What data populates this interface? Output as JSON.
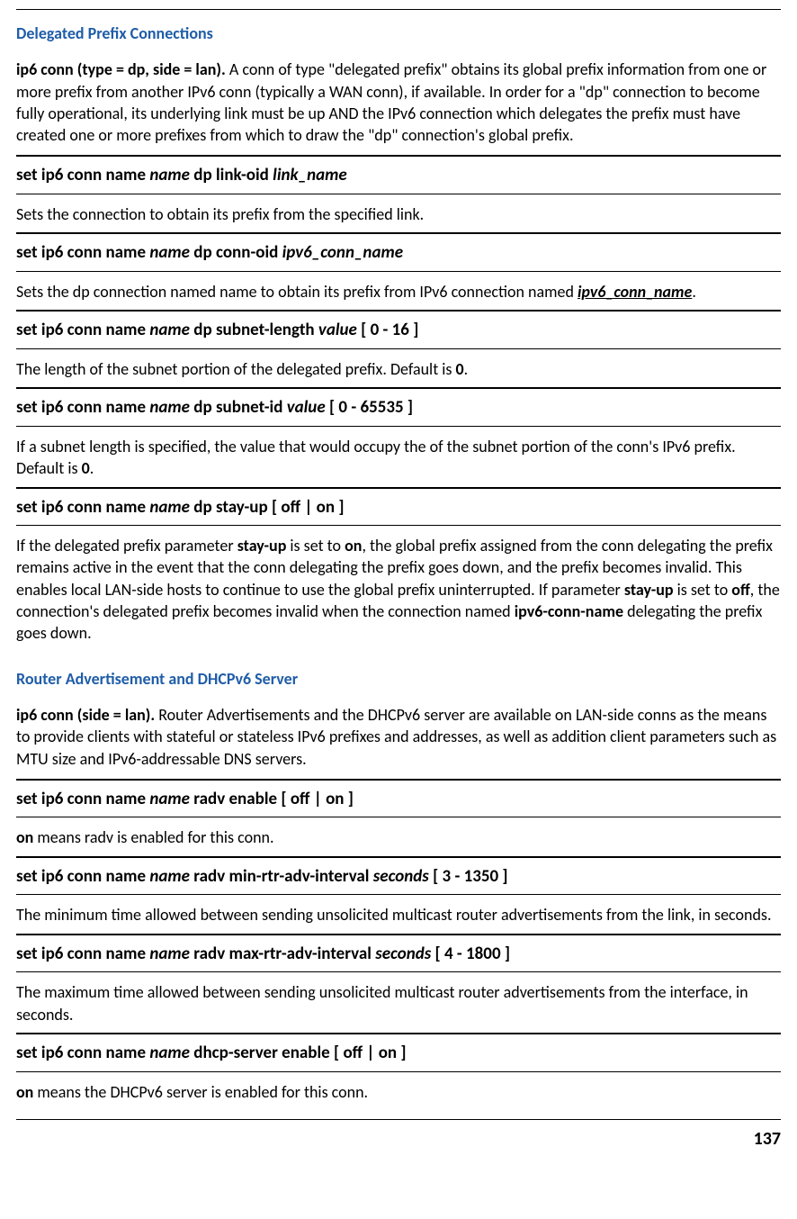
{
  "page_number": "137",
  "sections": [
    {
      "title": "Delegated Prefix Connections",
      "intro_lead": "ip6 conn (type = dp, side = lan).",
      "intro_body": " A conn of type \"delegated prefix\" obtains its global prefix information from one or more prefix from another IPv6 conn (typically a WAN conn), if available. In order for a \"dp\" connection to become fully operational, its underlying link must be up AND the IPv6 connection which delegates the prefix must have created one or more prefixes from which to draw the \"dp\" connection's global prefix.",
      "commands": [
        {
          "parts": [
            {
              "t": "set ip6 conn name ",
              "s": "b"
            },
            {
              "t": "name",
              "s": "i"
            },
            {
              "t": " dp link-oid ",
              "s": "b"
            },
            {
              "t": "link_name",
              "s": "i"
            }
          ],
          "desc": [
            {
              "t": "Sets the connection to obtain its prefix from the specified link.",
              "s": "n"
            }
          ]
        },
        {
          "parts": [
            {
              "t": "set ip6 conn name ",
              "s": "b"
            },
            {
              "t": "name",
              "s": "i"
            },
            {
              "t": " dp conn-oid ",
              "s": "b"
            },
            {
              "t": "ipv6_conn_name",
              "s": "i"
            }
          ],
          "desc": [
            {
              "t": "Sets the dp connection named name to obtain its prefix from IPv6 connection named ",
              "s": "n"
            },
            {
              "t": "ipv6_conn_name",
              "s": "biu"
            },
            {
              "t": ".",
              "s": "n"
            }
          ]
        },
        {
          "parts": [
            {
              "t": "set ip6 conn name ",
              "s": "b"
            },
            {
              "t": "name",
              "s": "i"
            },
            {
              "t": " dp subnet-length ",
              "s": "b"
            },
            {
              "t": "value",
              "s": "i"
            },
            {
              "t": " [ 0 - 16 ]",
              "s": "b"
            }
          ],
          "desc": [
            {
              "t": "The length of the subnet portion of the delegated prefix. Default is ",
              "s": "n"
            },
            {
              "t": "0",
              "s": "b"
            },
            {
              "t": ".",
              "s": "n"
            }
          ]
        },
        {
          "parts": [
            {
              "t": "set ip6 conn name ",
              "s": "b"
            },
            {
              "t": "name",
              "s": "i"
            },
            {
              "t": " dp subnet-id ",
              "s": "b"
            },
            {
              "t": "value",
              "s": "i"
            },
            {
              "t": " [ 0 - 65535 ]",
              "s": "b"
            }
          ],
          "desc": [
            {
              "t": "If a subnet length is specified, the value that would occupy the of the subnet portion of the conn's IPv6 prefix. Default is ",
              "s": "n"
            },
            {
              "t": "0",
              "s": "b"
            },
            {
              "t": ".",
              "s": "n"
            }
          ]
        },
        {
          "parts": [
            {
              "t": "set ip6 conn name ",
              "s": "b"
            },
            {
              "t": "name",
              "s": "i"
            },
            {
              "t": " dp stay-up [ off | on ]",
              "s": "b"
            }
          ],
          "desc": [
            {
              "t": "If the delegated prefix parameter ",
              "s": "n"
            },
            {
              "t": "stay-up",
              "s": "b"
            },
            {
              "t": " is set to ",
              "s": "n"
            },
            {
              "t": "on",
              "s": "b"
            },
            {
              "t": ", the global prefix assigned from the conn delegating the prefix remains active in the event that the conn delegating the prefix goes down, and the prefix becomes invalid. This enables local LAN-side hosts to continue to use the global prefix uninterrupted. If parameter ",
              "s": "n"
            },
            {
              "t": "stay-up",
              "s": "b"
            },
            {
              "t": " is set to ",
              "s": "n"
            },
            {
              "t": "off",
              "s": "b"
            },
            {
              "t": ", the connection's delegated prefix becomes invalid when the connection named ",
              "s": "n"
            },
            {
              "t": "ipv6-conn-name",
              "s": "b"
            },
            {
              "t": " delegating the prefix goes down.",
              "s": "n"
            }
          ]
        }
      ]
    },
    {
      "title": "Router Advertisement and DHCPv6 Server",
      "intro_lead": "ip6 conn (side = lan).",
      "intro_body": " Router Advertisements and the DHCPv6 server are available on LAN-side conns as the means to provide clients with stateful or stateless IPv6 prefixes and addresses, as well as addition client parameters such as MTU size and IPv6-addressable DNS servers.",
      "commands": [
        {
          "parts": [
            {
              "t": "set ip6 conn name ",
              "s": "b"
            },
            {
              "t": "name",
              "s": "i"
            },
            {
              "t": " radv enable [ off | on ]",
              "s": "b"
            }
          ],
          "desc": [
            {
              "t": "on",
              "s": "b"
            },
            {
              "t": " means radv is enabled for this conn.",
              "s": "n"
            }
          ]
        },
        {
          "parts": [
            {
              "t": "set ip6 conn name ",
              "s": "b"
            },
            {
              "t": "name",
              "s": "i"
            },
            {
              "t": " radv min-rtr-adv-interval ",
              "s": "b"
            },
            {
              "t": "seconds",
              "s": "i"
            },
            {
              "t": " [ 3 - 1350 ]",
              "s": "b"
            }
          ],
          "desc": [
            {
              "t": "The minimum time allowed between sending unsolicited multicast router advertisements from the link, in seconds.",
              "s": "n"
            }
          ]
        },
        {
          "parts": [
            {
              "t": "set ip6 conn name ",
              "s": "b"
            },
            {
              "t": "name",
              "s": "i"
            },
            {
              "t": " radv max-rtr-adv-interval ",
              "s": "b"
            },
            {
              "t": "seconds",
              "s": "i"
            },
            {
              "t": " [ 4 - 1800 ]",
              "s": "b"
            }
          ],
          "desc": [
            {
              "t": "The maximum time allowed between sending unsolicited multicast router advertisements from the interface, in seconds.",
              "s": "n"
            }
          ]
        },
        {
          "parts": [
            {
              "t": "set ip6 conn name ",
              "s": "b"
            },
            {
              "t": "name",
              "s": "i"
            },
            {
              "t": " dhcp-server  enable [ off | on ]",
              "s": "b"
            }
          ],
          "desc": [
            {
              "t": "on",
              "s": "b"
            },
            {
              "t": " means the DHCPv6 server is enabled for this conn.",
              "s": "n"
            }
          ]
        }
      ]
    }
  ]
}
